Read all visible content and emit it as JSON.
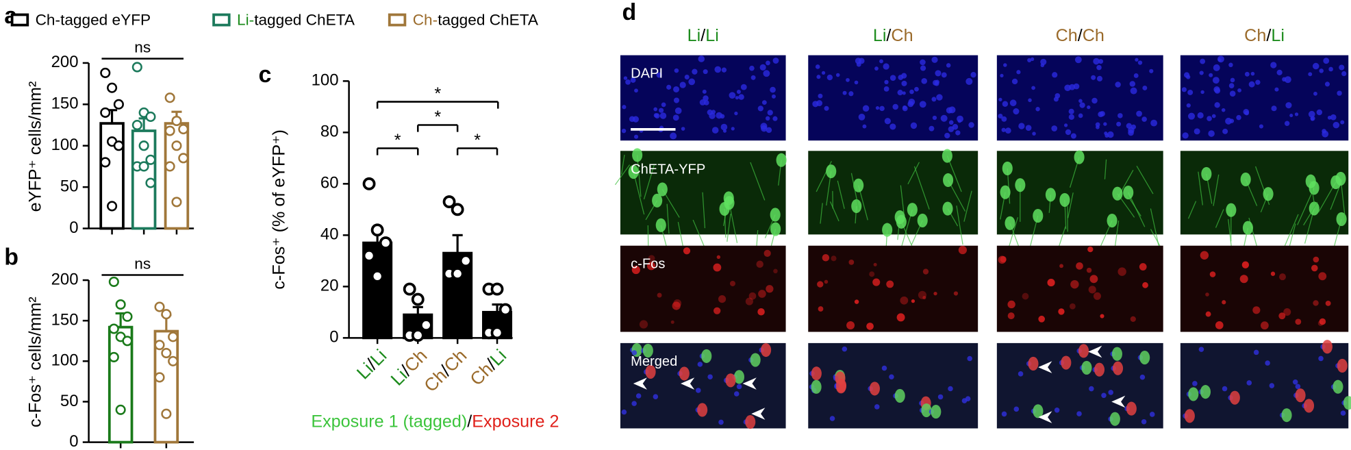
{
  "panel_labels": [
    "a",
    "b",
    "c",
    "d"
  ],
  "chart_data": [
    {
      "type": "bar",
      "ylabel": "eYFP⁺ cells/mm²",
      "ylim": [
        0,
        200
      ],
      "yticks": [
        0,
        50,
        100,
        150,
        200
      ],
      "annotations": [
        "ns"
      ],
      "series": [
        {
          "name": "Ch-tagged eYFP",
          "name_colors": [
            "#000000",
            "#000000",
            "#000000"
          ],
          "color": "#000000",
          "values": [
            127
          ],
          "errors": [
            16
          ],
          "points": [
            188,
            170,
            150,
            140,
            105,
            100,
            80,
            27
          ]
        },
        {
          "name": "Li-tagged ChETA",
          "name_colors": [
            "#1e8c1e",
            "#1e8c1e",
            "#000000"
          ],
          "color": "#1c7a5c",
          "values": [
            118
          ],
          "errors": [
            15
          ],
          "points": [
            195,
            140,
            135,
            125,
            100,
            83,
            75,
            75,
            55
          ]
        },
        {
          "name": "Ch-tagged ChETA",
          "name_colors": [
            "#9a6a2a",
            "#9a6a2a",
            "#000000"
          ],
          "color": "#a0773a",
          "values": [
            127
          ],
          "errors": [
            14
          ],
          "points": [
            158,
            130,
            120,
            118,
            100,
            85,
            75,
            32
          ]
        }
      ]
    },
    {
      "type": "bar",
      "ylabel": "c-Fos⁺ cells/mm²",
      "ylim": [
        0,
        200
      ],
      "yticks": [
        0,
        50,
        100,
        150,
        200
      ],
      "annotations": [
        "ns"
      ],
      "series": [
        {
          "color": "#1a7a1a",
          "values": [
            142
          ],
          "errors": [
            17
          ],
          "points": [
            198,
            170,
            155,
            140,
            130,
            125,
            105,
            40
          ]
        },
        {
          "color": "#a0773a",
          "values": [
            137
          ],
          "errors": [
            20
          ],
          "points": [
            167,
            158,
            130,
            120,
            110,
            100,
            80,
            35
          ]
        }
      ]
    },
    {
      "type": "bar",
      "ylabel": "c-Fos⁺ (% of eYFP⁺)",
      "ylim": [
        0,
        100
      ],
      "yticks": [
        0,
        20,
        40,
        60,
        80,
        100
      ],
      "color": "#000000",
      "categories": [
        "Li/Li",
        "Li/Ch",
        "Ch/Ch",
        "Ch/Li"
      ],
      "category_colors": [
        [
          "#1e8c1e",
          "#000000",
          "#1e8c1e"
        ],
        [
          "#1e8c1e",
          "#000000",
          "#9a6a2a"
        ],
        [
          "#9a6a2a",
          "#000000",
          "#9a6a2a"
        ],
        [
          "#9a6a2a",
          "#000000",
          "#1e8c1e"
        ]
      ],
      "values": [
        37,
        9,
        33,
        10
      ],
      "errors": [
        6,
        3,
        7,
        3
      ],
      "points": [
        [
          60,
          42,
          37,
          32,
          24
        ],
        [
          19,
          15,
          5,
          1,
          1
        ],
        [
          53,
          50,
          30,
          25,
          25
        ],
        [
          19,
          19,
          11,
          2,
          2
        ]
      ],
      "annotations": [
        "*",
        "*",
        "*",
        "*"
      ],
      "xlabel": [
        "Exposure 1 (tagged)",
        "/",
        "Exposure 2"
      ],
      "xlabel_colors": [
        "#3cc43c",
        "#000000",
        "#e0201a"
      ]
    }
  ],
  "micrographs": {
    "columns": [
      "Li/Li",
      "Li/Ch",
      "Ch/Ch",
      "Ch/Li"
    ],
    "column_colors": [
      [
        "#1e8c1e",
        "#000000",
        "#1e8c1e"
      ],
      [
        "#1e8c1e",
        "#000000",
        "#9a6a2a"
      ],
      [
        "#9a6a2a",
        "#000000",
        "#9a6a2a"
      ],
      [
        "#9a6a2a",
        "#000000",
        "#1e8c1e"
      ]
    ],
    "rows": [
      "DAPI",
      "ChETA-YFP",
      "c-Fos",
      "Merged"
    ]
  }
}
